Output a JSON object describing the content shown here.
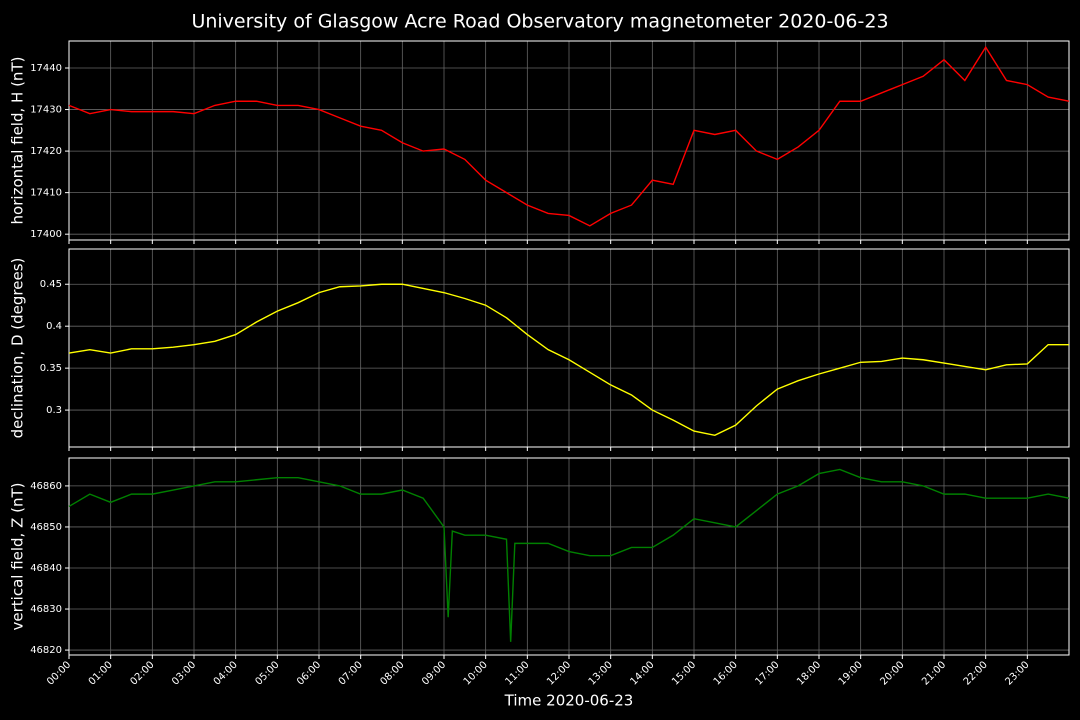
{
  "title": "University of Glasgow Acre Road Observatory magnetometer 2020-06-23",
  "chart_data": [
    {
      "type": "line",
      "ylabel": "horizontal field, H (nT)",
      "color": "#ff0000",
      "grid": true,
      "xlim": [
        0,
        24
      ],
      "ylim": [
        17398.6,
        17446.5
      ],
      "yticks": [
        17400,
        17410,
        17420,
        17430,
        17440
      ],
      "xticks": [
        0,
        1,
        2,
        3,
        4,
        5,
        6,
        7,
        8,
        9,
        10,
        11,
        12,
        13,
        14,
        15,
        16,
        17,
        18,
        19,
        20,
        21,
        22,
        23
      ],
      "x": [
        0,
        0.5,
        1,
        1.5,
        2,
        2.5,
        3,
        3.5,
        4,
        4.5,
        5,
        5.5,
        6,
        6.5,
        7,
        7.5,
        8,
        8.5,
        9,
        9.5,
        10,
        10.5,
        11,
        11.5,
        12,
        12.5,
        13,
        13.5,
        14,
        14.5,
        15,
        15.5,
        16,
        16.5,
        17,
        17.5,
        18,
        18.5,
        19,
        19.5,
        20,
        20.5,
        21,
        21.5,
        22,
        22.5,
        23,
        23.5,
        24
      ],
      "values": [
        17431,
        17429,
        17430,
        17429.5,
        17429.5,
        17429.5,
        17429,
        17431,
        17432,
        17432,
        17431,
        17431,
        17430,
        17428,
        17426,
        17425,
        17422,
        17420,
        17420.5,
        17418,
        17413,
        17410,
        17407,
        17405,
        17404.5,
        17402,
        17405,
        17407,
        17413,
        17412,
        17425,
        17424,
        17425,
        17420,
        17418,
        17421,
        17425,
        17432,
        17432,
        17434,
        17436,
        17438,
        17442,
        17437,
        17445,
        17437,
        17436,
        17433,
        17432
      ]
    },
    {
      "type": "line",
      "ylabel": "declination, D (degrees)",
      "color": "#ffff00",
      "grid": true,
      "xlim": [
        0,
        24
      ],
      "ylim": [
        0.256,
        0.492
      ],
      "yticks": [
        0.3,
        0.35,
        0.4,
        0.45
      ],
      "xticks": [
        0,
        1,
        2,
        3,
        4,
        5,
        6,
        7,
        8,
        9,
        10,
        11,
        12,
        13,
        14,
        15,
        16,
        17,
        18,
        19,
        20,
        21,
        22,
        23
      ],
      "x": [
        0,
        0.5,
        1,
        1.5,
        2,
        2.5,
        3,
        3.5,
        4,
        4.5,
        5,
        5.5,
        6,
        6.5,
        7,
        7.5,
        8,
        8.5,
        9,
        9.5,
        10,
        10.5,
        11,
        11.5,
        12,
        12.5,
        13,
        13.5,
        14,
        14.5,
        15,
        15.5,
        16,
        16.5,
        17,
        17.5,
        18,
        18.5,
        19,
        19.5,
        20,
        20.5,
        21,
        21.5,
        22,
        22.5,
        23,
        23.5,
        24
      ],
      "values": [
        0.368,
        0.372,
        0.368,
        0.373,
        0.373,
        0.375,
        0.378,
        0.382,
        0.39,
        0.405,
        0.418,
        0.428,
        0.44,
        0.447,
        0.448,
        0.45,
        0.45,
        0.445,
        0.44,
        0.433,
        0.425,
        0.41,
        0.39,
        0.372,
        0.36,
        0.345,
        0.33,
        0.318,
        0.3,
        0.288,
        0.275,
        0.27,
        0.282,
        0.305,
        0.325,
        0.335,
        0.343,
        0.35,
        0.357,
        0.358,
        0.362,
        0.36,
        0.356,
        0.352,
        0.348,
        0.354,
        0.355,
        0.378,
        0.378
      ]
    },
    {
      "type": "line",
      "ylabel": "vertical field, Z (nT)",
      "xlabel": "Time 2020-06-23",
      "color": "#008000",
      "grid": true,
      "xlim": [
        0,
        24
      ],
      "ylim": [
        46818.8,
        46866.8
      ],
      "yticks": [
        46820,
        46830,
        46840,
        46850,
        46860
      ],
      "xticks": [
        {
          "value": 0,
          "label": "00:00"
        },
        {
          "value": 1,
          "label": "01:00"
        },
        {
          "value": 2,
          "label": "02:00"
        },
        {
          "value": 3,
          "label": "03:00"
        },
        {
          "value": 4,
          "label": "04:00"
        },
        {
          "value": 5,
          "label": "05:00"
        },
        {
          "value": 6,
          "label": "06:00"
        },
        {
          "value": 7,
          "label": "07:00"
        },
        {
          "value": 8,
          "label": "08:00"
        },
        {
          "value": 9,
          "label": "09:00"
        },
        {
          "value": 10,
          "label": "10:00"
        },
        {
          "value": 11,
          "label": "11:00"
        },
        {
          "value": 12,
          "label": "12:00"
        },
        {
          "value": 13,
          "label": "13:00"
        },
        {
          "value": 14,
          "label": "14:00"
        },
        {
          "value": 15,
          "label": "15:00"
        },
        {
          "value": 16,
          "label": "16:00"
        },
        {
          "value": 17,
          "label": "17:00"
        },
        {
          "value": 18,
          "label": "18:00"
        },
        {
          "value": 19,
          "label": "19:00"
        },
        {
          "value": 20,
          "label": "20:00"
        },
        {
          "value": 21,
          "label": "21:00"
        },
        {
          "value": 22,
          "label": "22:00"
        },
        {
          "value": 23,
          "label": "23:00"
        }
      ],
      "x": [
        0,
        0.5,
        1,
        1.5,
        2,
        2.5,
        3,
        3.5,
        4,
        4.5,
        5,
        5.5,
        6,
        6.5,
        7,
        7.5,
        8,
        8.5,
        9,
        9.1,
        9.2,
        9.5,
        10,
        10.5,
        10.6,
        10.7,
        11,
        11.5,
        12,
        12.5,
        13,
        13.5,
        14,
        14.5,
        15,
        15.5,
        16,
        16.5,
        17,
        17.5,
        18,
        18.5,
        19,
        19.5,
        20,
        20.5,
        21,
        21.5,
        22,
        22.5,
        23,
        23.5,
        24
      ],
      "values": [
        46855,
        46858,
        46856,
        46858,
        46858,
        46859,
        46860,
        46861,
        46861,
        46861.5,
        46862,
        46862,
        46861,
        46860,
        46858,
        46858,
        46859,
        46857,
        46850,
        46828,
        46849,
        46848,
        46848,
        46847,
        46822,
        46846,
        46846,
        46846,
        46844,
        46843,
        46843,
        46845,
        46845,
        46848,
        46852,
        46851,
        46850,
        46854,
        46858,
        46860,
        46863,
        46864,
        46862,
        46861,
        46861,
        46860,
        46858,
        46858,
        46857,
        46857,
        46857,
        46858,
        46857
      ]
    }
  ]
}
